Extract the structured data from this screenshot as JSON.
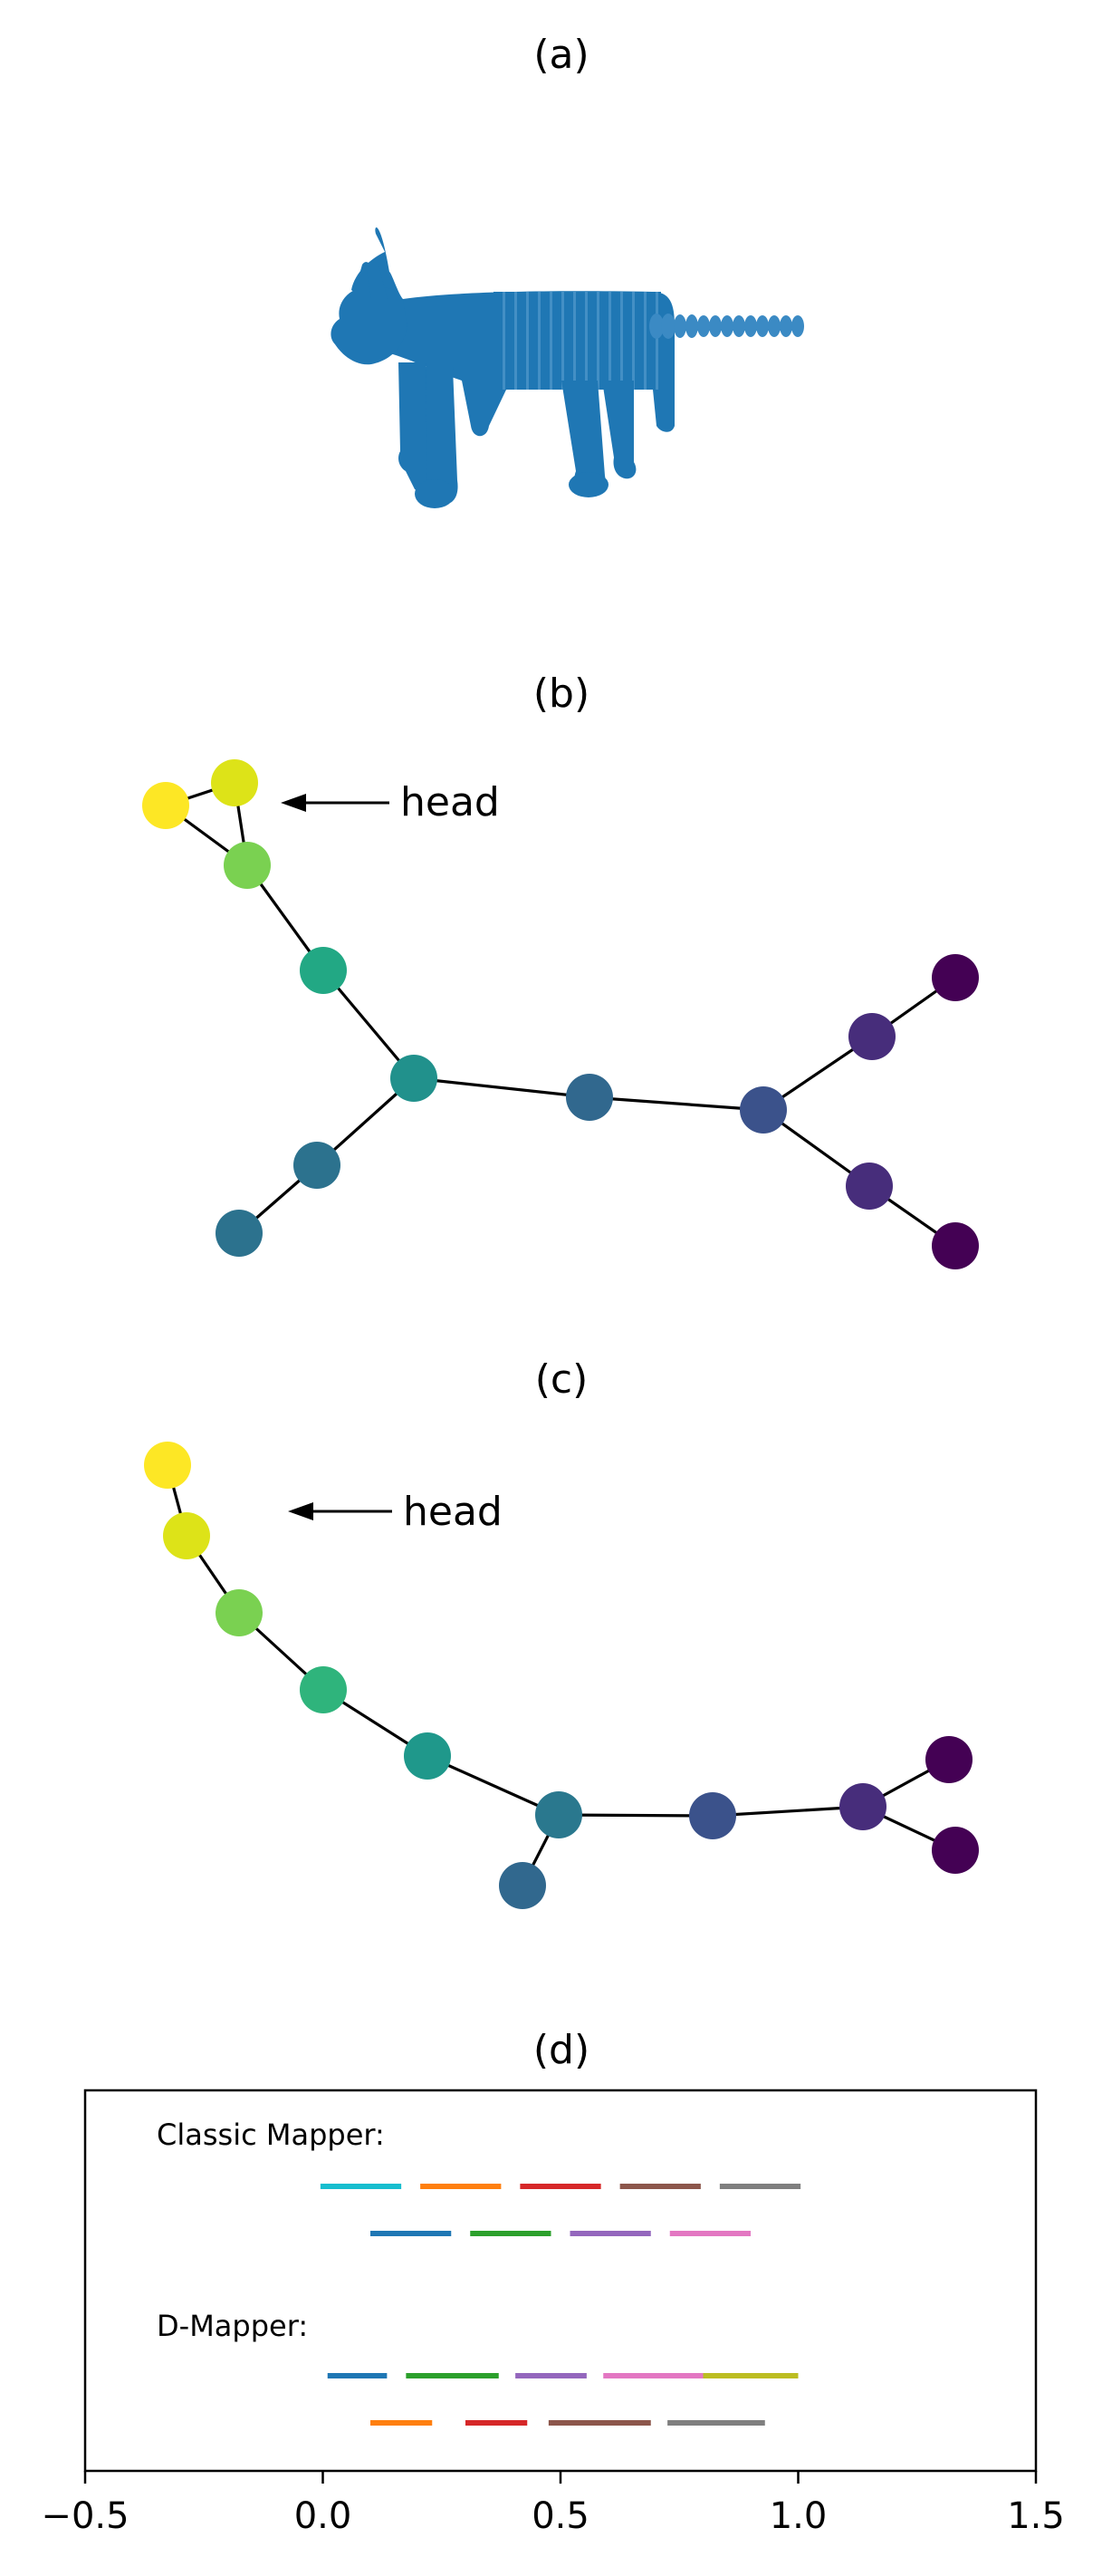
{
  "panels": {
    "a": {
      "title": "(a)"
    },
    "b": {
      "title": "(b)",
      "annotation": "head"
    },
    "c": {
      "title": "(c)",
      "annotation": "head"
    },
    "d": {
      "title": "(d)",
      "classic_label": "Classic Mapper:",
      "dmapper_label": "D-Mapper:"
    }
  },
  "axis": {
    "range": [
      -0.5,
      1.5
    ],
    "ticks": [
      {
        "value": -0.5,
        "label": "−0.5"
      },
      {
        "value": 0.0,
        "label": "0.0"
      },
      {
        "value": 0.5,
        "label": "0.5"
      },
      {
        "value": 1.0,
        "label": "1.0"
      },
      {
        "value": 1.5,
        "label": "1.5"
      }
    ]
  },
  "chart_data": {
    "type": "interval-cover",
    "xlim": [
      -0.5,
      1.5
    ],
    "classic_mapper": [
      {
        "start": -0.005,
        "end": 0.165,
        "color": "#17becf"
      },
      {
        "start": 0.205,
        "end": 0.375,
        "color": "#ff7f0e"
      },
      {
        "start": 0.415,
        "end": 0.585,
        "color": "#d62728"
      },
      {
        "start": 0.625,
        "end": 0.795,
        "color": "#8c564b"
      },
      {
        "start": 0.835,
        "end": 1.005,
        "color": "#7f7f7f"
      },
      {
        "start": 0.1,
        "end": 0.27,
        "color": "#1f77b4"
      },
      {
        "start": 0.31,
        "end": 0.48,
        "color": "#2ca02c"
      },
      {
        "start": 0.52,
        "end": 0.69,
        "color": "#9467bd"
      },
      {
        "start": 0.73,
        "end": 0.9,
        "color": "#e377c2"
      }
    ],
    "d_mapper": [
      {
        "start": 0.01,
        "end": 0.135,
        "color": "#1f77b4"
      },
      {
        "start": 0.175,
        "end": 0.37,
        "color": "#2ca02c"
      },
      {
        "start": 0.405,
        "end": 0.555,
        "color": "#9467bd"
      },
      {
        "start": 0.59,
        "end": 0.8,
        "color": "#e377c2"
      },
      {
        "start": 0.8,
        "end": 1.0,
        "color": "#bcbd22"
      },
      {
        "start": 0.1,
        "end": 0.23,
        "color": "#ff7f0e"
      },
      {
        "start": 0.3,
        "end": 0.43,
        "color": "#d62728"
      },
      {
        "start": 0.475,
        "end": 0.69,
        "color": "#8c564b"
      },
      {
        "start": 0.725,
        "end": 0.93,
        "color": "#7f7f7f"
      }
    ]
  },
  "graph_b": {
    "nodes": [
      {
        "id": "b0",
        "color": "#fde725"
      },
      {
        "id": "b1",
        "color": "#dde318"
      },
      {
        "id": "b2",
        "color": "#7ad151"
      },
      {
        "id": "b3",
        "color": "#22a884"
      },
      {
        "id": "b4",
        "color": "#21918c"
      },
      {
        "id": "b5",
        "color": "#2c728e"
      },
      {
        "id": "b6",
        "color": "#2c728e"
      },
      {
        "id": "b7",
        "color": "#31688e"
      },
      {
        "id": "b8",
        "color": "#3b528b"
      },
      {
        "id": "b9",
        "color": "#472d7b"
      },
      {
        "id": "b10",
        "color": "#440154"
      },
      {
        "id": "b11",
        "color": "#472d7b"
      },
      {
        "id": "b12",
        "color": "#440154"
      }
    ],
    "edges": [
      [
        "b0",
        "b1"
      ],
      [
        "b0",
        "b2"
      ],
      [
        "b1",
        "b2"
      ],
      [
        "b2",
        "b3"
      ],
      [
        "b3",
        "b4"
      ],
      [
        "b4",
        "b5"
      ],
      [
        "b5",
        "b6"
      ],
      [
        "b4",
        "b7"
      ],
      [
        "b7",
        "b8"
      ],
      [
        "b8",
        "b9"
      ],
      [
        "b9",
        "b10"
      ],
      [
        "b8",
        "b11"
      ],
      [
        "b11",
        "b12"
      ]
    ]
  },
  "graph_c": {
    "nodes": [
      {
        "id": "c0",
        "color": "#fde725"
      },
      {
        "id": "c1",
        "color": "#dde318"
      },
      {
        "id": "c2",
        "color": "#7ad151"
      },
      {
        "id": "c3",
        "color": "#2fb47c"
      },
      {
        "id": "c4",
        "color": "#1f988b"
      },
      {
        "id": "c5",
        "color": "#2a788e"
      },
      {
        "id": "c6",
        "color": "#31688e"
      },
      {
        "id": "c7",
        "color": "#3b528b"
      },
      {
        "id": "c8",
        "color": "#472d7b"
      },
      {
        "id": "c9",
        "color": "#440154"
      },
      {
        "id": "c10",
        "color": "#440154"
      }
    ],
    "edges": [
      [
        "c0",
        "c1"
      ],
      [
        "c1",
        "c2"
      ],
      [
        "c2",
        "c3"
      ],
      [
        "c3",
        "c4"
      ],
      [
        "c4",
        "c5"
      ],
      [
        "c5",
        "c6"
      ],
      [
        "c5",
        "c7"
      ],
      [
        "c7",
        "c8"
      ],
      [
        "c8",
        "c9"
      ],
      [
        "c8",
        "c10"
      ]
    ]
  },
  "point_cloud": {
    "color": "#1f77b4",
    "subject": "cat"
  }
}
